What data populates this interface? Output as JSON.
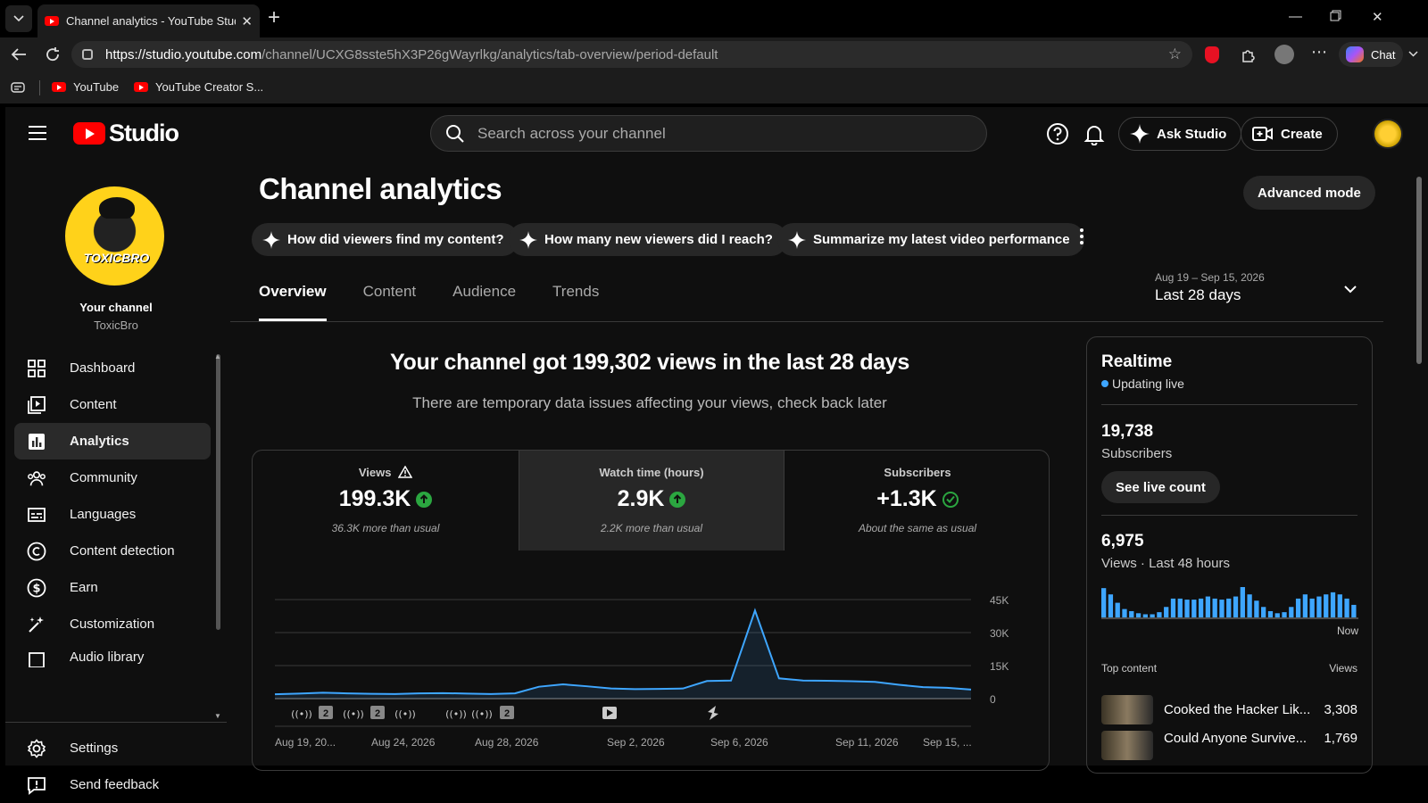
{
  "browser": {
    "tab_title": "Channel analytics - YouTube Studio",
    "url_host": "https://studio.youtube.com",
    "url_path": "/channel/UCXG8sste5hX3P26gWayrlkg/analytics/tab-overview/period-default",
    "chat_label": "Chat",
    "bookmarks": [
      "YouTube",
      "YouTube Creator S..."
    ]
  },
  "studio": {
    "logo_text": "Studio",
    "search_placeholder": "Search across your channel",
    "ask_studio": "Ask Studio",
    "create": "Create"
  },
  "sidebar": {
    "your_channel": "Your channel",
    "channel_name": "ToxicBro",
    "avatar_text": "TOXICBRO",
    "items": [
      {
        "label": "Dashboard",
        "icon": "dashboard-icon"
      },
      {
        "label": "Content",
        "icon": "content-icon"
      },
      {
        "label": "Analytics",
        "icon": "analytics-icon",
        "active": true
      },
      {
        "label": "Community",
        "icon": "community-icon"
      },
      {
        "label": "Languages",
        "icon": "languages-icon"
      },
      {
        "label": "Content detection",
        "icon": "copyright-icon"
      },
      {
        "label": "Earn",
        "icon": "dollar-icon"
      },
      {
        "label": "Customization",
        "icon": "magic-wand-icon"
      },
      {
        "label": "Audio library",
        "icon": "audio-library-icon"
      }
    ],
    "bottom": [
      {
        "label": "Settings",
        "icon": "gear-icon"
      },
      {
        "label": "Send feedback",
        "icon": "feedback-icon"
      }
    ]
  },
  "main": {
    "title": "Channel analytics",
    "advanced_mode": "Advanced mode",
    "chips": [
      "How did viewers find my content?",
      "How many new viewers did I reach?",
      "Summarize my latest video performance"
    ],
    "tabs": [
      "Overview",
      "Content",
      "Audience",
      "Trends"
    ],
    "period_range": "Aug 19 – Sep 15, 2026",
    "period_label": "Last 28 days",
    "headline": "Your channel got 199,302 views in the last 28 days",
    "subline": "There are temporary data issues affecting your views, check back later",
    "metrics": [
      {
        "title": "Views",
        "value": "199.3K",
        "note": "36.3K more than usual",
        "status": "up"
      },
      {
        "title": "Watch time (hours)",
        "value": "2.9K",
        "note": "2.2K more than usual",
        "status": "up"
      },
      {
        "title": "Subscribers",
        "value": "+1.3K",
        "note": "About the same as usual",
        "status": "same"
      }
    ]
  },
  "chart_data": {
    "type": "area",
    "series": [
      {
        "values": [
          2000,
          2300,
          2700,
          2400,
          2200,
          2100,
          2400,
          2500,
          2300,
          2100,
          2400,
          5400,
          6500,
          5600,
          4600,
          4300,
          4400,
          4600,
          8000,
          8200,
          40000,
          9200,
          8200,
          8100,
          7900,
          7600,
          6300,
          5200,
          4900,
          4100
        ]
      }
    ],
    "ylim": [
      0,
      45000
    ],
    "yticks": [
      "45K",
      "30K",
      "15K",
      "0"
    ],
    "xticks": [
      "Aug 19, 20...",
      "Aug 24, 2026",
      "Aug 28, 2026",
      "Sep 2, 2026",
      "Sep 6, 2026",
      "Sep 11, 2026",
      "Sep 15, ..."
    ],
    "grid": true,
    "markers": [
      "live",
      "2",
      "live",
      "2",
      "live",
      "live",
      "live",
      "2",
      "video",
      "short"
    ]
  },
  "realtime": {
    "title": "Realtime",
    "live": "Updating live",
    "subs_value": "19,738",
    "subs_label": "Subscribers",
    "see_live": "See live count",
    "views_value": "6,975",
    "views_label": "Views · Last 48 hours",
    "now": "Now",
    "top_content": "Top content",
    "views_col": "Views",
    "bars": [
      28,
      22,
      14,
      8,
      6,
      4,
      3,
      3,
      5,
      10,
      18,
      18,
      17,
      17,
      18,
      20,
      18,
      17,
      18,
      20,
      29,
      22,
      16,
      10,
      6,
      4,
      5,
      10,
      18,
      22,
      18,
      20,
      22,
      24,
      22,
      18,
      12
    ],
    "rows": [
      {
        "title": "Cooked the Hacker Lik...",
        "views": "3,308"
      },
      {
        "title": "Could Anyone Survive...",
        "views": "1,769"
      }
    ]
  },
  "colors": {
    "accent": "#3ea6ff",
    "brand": "#ff0000",
    "up": "#2ba640"
  }
}
